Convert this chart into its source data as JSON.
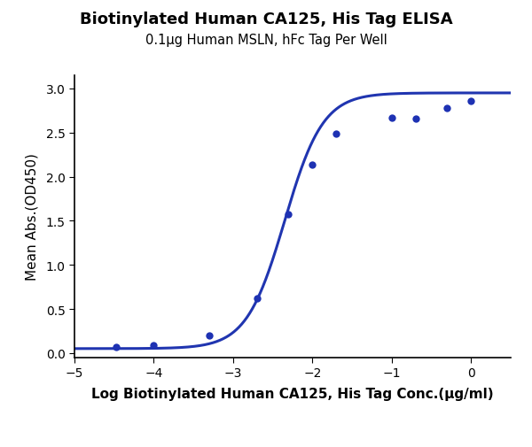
{
  "title": "Biotinylated Human CA125, His Tag ELISA",
  "subtitle": "0.1μg Human MSLN, hFc Tag Per Well",
  "xlabel": "Log Biotinylated Human CA125, His Tag Conc.(μg/ml)",
  "ylabel": "Mean Abs.(OD450)",
  "curve_color": "#2035b0",
  "dot_color": "#1e32b3",
  "dot_size": 6,
  "x_data": [
    -4.477,
    -4.0,
    -3.301,
    -2.699,
    -2.301,
    -2.0,
    -1.699,
    -1.0,
    -0.699,
    -0.301,
    0.0
  ],
  "y_data": [
    0.07,
    0.09,
    0.2,
    0.62,
    1.57,
    2.14,
    2.49,
    2.67,
    2.66,
    2.78,
    2.86
  ],
  "xlim": [
    -5,
    0.5
  ],
  "ylim": [
    -0.05,
    3.15
  ],
  "xticks": [
    -5,
    -4,
    -3,
    -2,
    -1,
    0
  ],
  "yticks": [
    0.0,
    0.5,
    1.0,
    1.5,
    2.0,
    2.5,
    3.0
  ],
  "title_fontsize": 13,
  "subtitle_fontsize": 10.5,
  "axis_label_fontsize": 11,
  "tick_fontsize": 10,
  "background_color": "#ffffff",
  "line_width": 2.2,
  "sigmoid_p0": [
    0.05,
    2.95,
    -2.35,
    1.8
  ]
}
